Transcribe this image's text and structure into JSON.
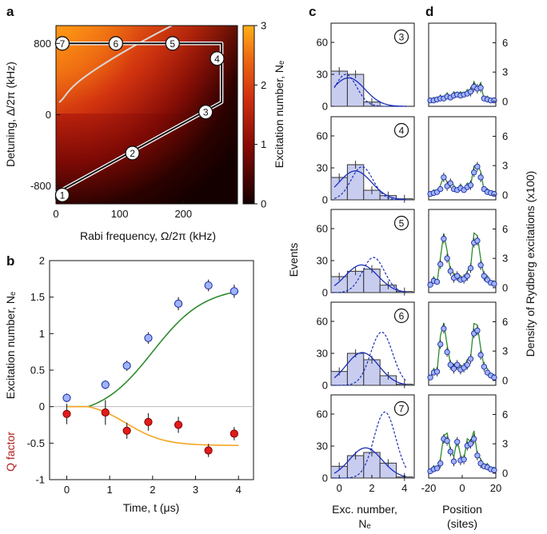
{
  "panel_letters": [
    "a",
    "b",
    "c",
    "d"
  ],
  "colors": {
    "heat_low": "#140000",
    "heat_mid": "#c42a10",
    "heat_high": "#ff9f0f",
    "bars_fill": "#c8cdf0",
    "bars_stroke": "#333333",
    "blue_theory": "#1b2fb8",
    "green_theory": "#2e8b2e",
    "orange_theory": "#f5a623",
    "blue_marker": "#9fb3ff",
    "red_marker": "#e31b1b",
    "q_label": "#b02020"
  },
  "chart_data": [
    {
      "id": "a",
      "type": "heatmap",
      "xlabel": "Rabi frequency, Ω/2π (kHz)",
      "ylabel": "Detuning, Δ/2π (kHz)",
      "xticks": [
        "0",
        "100",
        "200"
      ],
      "yticks": [
        "800",
        "0",
        "-800"
      ],
      "xlim": [
        0,
        285
      ],
      "ylim": [
        -1000,
        1000
      ],
      "colorbar_label": "Excitation number, Nₑ",
      "colorbar_ticks": [
        "3",
        "2",
        "1",
        "0"
      ],
      "colorbar_range": [
        0,
        3
      ],
      "path_points": [
        {
          "label": "1",
          "omega": 10,
          "delta": -900
        },
        {
          "label": "2",
          "omega": 120,
          "delta": -430
        },
        {
          "label": "3",
          "omega": 235,
          "delta": 30
        },
        {
          "label": "4",
          "omega": 253,
          "delta": 630
        },
        {
          "label": "5",
          "omega": 183,
          "delta": 800
        },
        {
          "label": "6",
          "omega": 94,
          "delta": 800
        },
        {
          "label": "7",
          "omega": 10,
          "delta": 800
        }
      ],
      "path_vertices": [
        {
          "omega": 0,
          "delta": -950
        },
        {
          "omega": 0,
          "delta": -880
        },
        {
          "omega": 260,
          "delta": 140
        },
        {
          "omega": 260,
          "delta": 800
        },
        {
          "omega": 0,
          "delta": 800
        }
      ]
    },
    {
      "id": "b",
      "type": "scatter",
      "xlabel": "Time, t (μs)",
      "ylabel": "Excitation number, Nₑ",
      "ylabel_secondary": "Q factor",
      "xlim": [
        -0.4,
        4.35
      ],
      "ylim": [
        -1,
        2
      ],
      "xticks": [
        "0",
        "1",
        "2",
        "3",
        "4"
      ],
      "yticks": [
        "2",
        "1.5",
        "1",
        "0.5",
        "0",
        "-0.5",
        "-1"
      ],
      "series": [
        {
          "role": "excitation",
          "x": [
            0,
            0.9,
            1.4,
            1.9,
            2.6,
            3.3,
            3.9
          ],
          "y": [
            0.12,
            0.3,
            0.56,
            0.94,
            1.41,
            1.66,
            1.58
          ],
          "err": [
            0.06,
            0.06,
            0.07,
            0.08,
            0.09,
            0.08,
            0.09
          ]
        },
        {
          "role": "q_factor",
          "x": [
            0,
            0.9,
            1.4,
            1.9,
            2.6,
            3.3,
            3.9
          ],
          "y": [
            -0.1,
            -0.08,
            -0.33,
            -0.21,
            -0.25,
            -0.6,
            -0.37
          ],
          "err": [
            0.14,
            0.17,
            0.11,
            0.12,
            0.11,
            0.09,
            0.09
          ]
        }
      ]
    },
    {
      "id": "c",
      "type": "bar",
      "xlabel_line1": "Exc. number,",
      "xlabel_line2": "Nₑ",
      "ylabel": "Events",
      "xticks": [
        "0",
        "2",
        "4"
      ],
      "yticks": [
        "60",
        "30",
        "0"
      ],
      "ylim": [
        0,
        78
      ],
      "panels": [
        {
          "step": "3",
          "values": [
            33,
            30,
            4,
            0,
            0
          ]
        },
        {
          "step": "4",
          "values": [
            21,
            33,
            9,
            4,
            1
          ]
        },
        {
          "step": "5",
          "values": [
            15,
            20,
            22,
            7,
            1
          ]
        },
        {
          "step": "6",
          "values": [
            13,
            30,
            24,
            9,
            1
          ]
        },
        {
          "step": "7",
          "values": [
            11,
            21,
            24,
            14,
            1
          ]
        }
      ]
    },
    {
      "id": "d",
      "type": "scatter",
      "xlabel_line1": "Position",
      "xlabel_line2": "(sites)",
      "ylabel": "Density of Rydberg excitations (x100)",
      "xticks": [
        "-20",
        "0",
        "20"
      ],
      "yticks": [
        "6",
        "3",
        "0"
      ],
      "xlim": [
        -20,
        20
      ],
      "ylim": [
        -0.5,
        8
      ],
      "panels": [
        {
          "step": "3",
          "x": [
            -19,
            -17,
            -15,
            -13,
            -11,
            -9,
            -7,
            -5,
            -3,
            -1,
            1,
            3,
            5,
            7,
            9,
            11,
            13,
            15,
            17,
            19
          ],
          "y": [
            0.1,
            0.1,
            0.2,
            0.3,
            0.3,
            0.5,
            0.4,
            0.6,
            0.7,
            0.6,
            0.7,
            0.8,
            1.0,
            1.5,
            1.3,
            1.4,
            0.3,
            0.2,
            0.1,
            0.1
          ]
        },
        {
          "step": "4",
          "x": [
            -19,
            -17,
            -15,
            -13,
            -11,
            -9,
            -7,
            -5,
            -3,
            -1,
            1,
            3,
            5,
            7,
            9,
            11,
            13,
            15,
            17,
            19
          ],
          "y": [
            0.1,
            0.2,
            0.3,
            0.6,
            1.8,
            0.9,
            1.2,
            0.6,
            0.5,
            0.7,
            0.5,
            0.8,
            1.0,
            2.3,
            2.9,
            1.8,
            0.6,
            0.3,
            0.2,
            0.1
          ]
        },
        {
          "step": "5",
          "x": [
            -19,
            -17,
            -15,
            -13,
            -11,
            -9,
            -7,
            -5,
            -3,
            -1,
            1,
            3,
            5,
            7,
            9,
            11,
            13,
            15,
            17,
            19
          ],
          "y": [
            0.3,
            0.7,
            0.6,
            2.4,
            5.0,
            3.0,
            1.7,
            1.0,
            1.2,
            0.8,
            0.9,
            1.2,
            2.0,
            4.6,
            4.8,
            2.3,
            1.2,
            0.8,
            0.5,
            0.4
          ]
        },
        {
          "step": "6",
          "x": [
            -19,
            -17,
            -15,
            -13,
            -11,
            -9,
            -7,
            -5,
            -3,
            -1,
            1,
            3,
            5,
            7,
            9,
            11,
            13,
            15,
            17,
            19
          ],
          "y": [
            0.3,
            0.8,
            0.9,
            3.7,
            5.3,
            2.9,
            1.6,
            1.2,
            1.6,
            1.1,
            1.3,
            1.6,
            2.2,
            4.8,
            5.1,
            2.6,
            1.4,
            0.8,
            0.5,
            0.3
          ]
        },
        {
          "step": "7",
          "x": [
            -19,
            -17,
            -15,
            -13,
            -11,
            -9,
            -7,
            -5,
            -3,
            -1,
            1,
            3,
            5,
            7,
            9,
            11,
            13,
            15,
            17,
            19
          ],
          "y": [
            0.2,
            0.4,
            0.5,
            1.0,
            3.5,
            3.3,
            2.2,
            1.2,
            3.2,
            1.3,
            1.4,
            2.8,
            3.0,
            3.5,
            1.8,
            1.0,
            0.7,
            0.6,
            0.4,
            0.3
          ]
        }
      ]
    }
  ]
}
